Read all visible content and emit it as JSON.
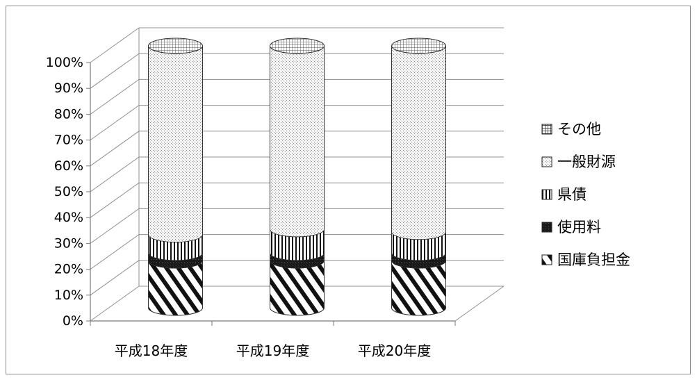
{
  "chart_data": {
    "type": "bar",
    "stacked": "percent",
    "three_d": "cylinder",
    "categories": [
      "平成18年度",
      "平成19年度",
      "平成20年度"
    ],
    "series": [
      {
        "name": "国庫負担金",
        "values": [
          18,
          18,
          18
        ]
      },
      {
        "name": "使用料",
        "values": [
          3,
          3,
          3
        ]
      },
      {
        "name": "県債",
        "values": [
          7,
          9,
          8
        ]
      },
      {
        "name": "一般財源",
        "values": [
          72,
          70,
          71
        ]
      },
      {
        "name": "その他",
        "values": [
          0,
          0,
          0
        ]
      }
    ],
    "y_ticks": [
      "0%",
      "10%",
      "20%",
      "30%",
      "40%",
      "50%",
      "60%",
      "70%",
      "80%",
      "90%",
      "100%"
    ],
    "ylim": [
      0,
      100
    ],
    "grid": true,
    "legend_position": "right",
    "legend_order": [
      "その他",
      "一般財源",
      "県債",
      "使用料",
      "国庫負担金"
    ]
  }
}
